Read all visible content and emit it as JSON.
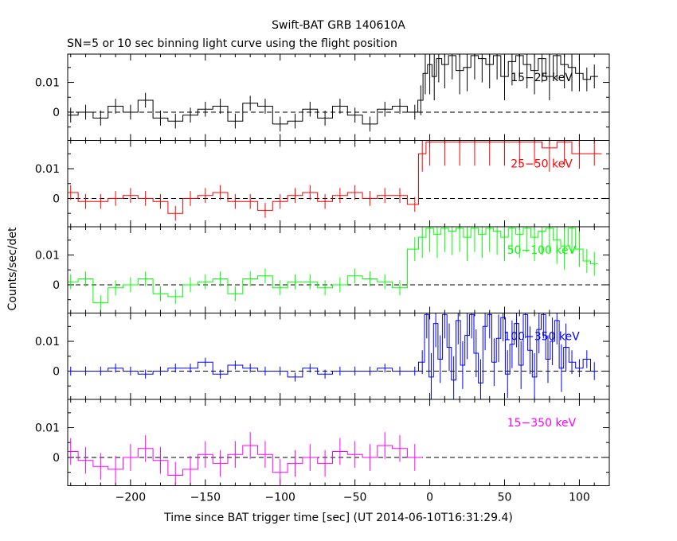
{
  "title": "Swift-BAT GRB 140610A",
  "subtitle": "SN=5 or 10 sec binning light curve using the flight position",
  "chart_data": {
    "type": "line",
    "title": "Swift-BAT GRB 140610A",
    "subtitle": "SN=5 or 10 sec binning light curve using the flight position",
    "xlabel": "Time since BAT trigger time [sec] (UT 2014-06-10T16:31:29.4)",
    "ylabel": "Counts/sec/det",
    "xlim": [
      -242,
      120
    ],
    "ylim": [
      -0.0095,
      0.0195
    ],
    "x_ticks": [
      -200,
      -150,
      -100,
      -50,
      0,
      50,
      100
    ],
    "x_tick_labels": [
      "−200",
      "−150",
      "−100",
      "−50",
      "0",
      "50",
      "100"
    ],
    "y_ticks": [
      0,
      0.01
    ],
    "y_tick_labels": [
      "0",
      "0.01"
    ],
    "zero_line": "dashed",
    "grid": false,
    "panels": [
      {
        "name": "15−25 keV",
        "color": "#000000",
        "x": [
          -240,
          -230,
          -220,
          -210,
          -200,
          -190,
          -180,
          -170,
          -160,
          -150,
          -140,
          -130,
          -120,
          -110,
          -100,
          -90,
          -80,
          -70,
          -60,
          -50,
          -40,
          -30,
          -20,
          -10,
          -6,
          -3,
          0,
          3,
          6,
          10,
          15,
          20,
          25,
          30,
          35,
          40,
          45,
          50,
          55,
          60,
          65,
          70,
          75,
          80,
          85,
          90,
          95,
          100,
          105,
          110
        ],
        "y": [
          -0.001,
          0.0,
          -0.002,
          0.002,
          0.0,
          0.004,
          -0.002,
          -0.003,
          -0.001,
          0.001,
          0.002,
          -0.003,
          0.003,
          0.002,
          -0.004,
          -0.003,
          0.001,
          -0.002,
          0.002,
          -0.001,
          -0.004,
          0.001,
          0.002,
          0.0,
          0.004,
          0.013,
          0.016,
          0.012,
          0.018,
          0.016,
          0.019,
          0.014,
          0.015,
          0.019,
          0.018,
          0.016,
          0.019,
          0.012,
          0.017,
          0.019,
          0.016,
          0.014,
          0.018,
          0.012,
          0.019,
          0.016,
          0.015,
          0.013,
          0.011,
          0.012
        ],
        "err": [
          0.0025,
          0.0025,
          0.0025,
          0.0025,
          0.0025,
          0.0025,
          0.0025,
          0.0025,
          0.0025,
          0.0025,
          0.0025,
          0.0025,
          0.0025,
          0.0025,
          0.0025,
          0.0025,
          0.0025,
          0.0025,
          0.0025,
          0.0025,
          0.0025,
          0.0025,
          0.0025,
          0.0025,
          0.005,
          0.007,
          0.01,
          0.008,
          0.008,
          0.008,
          0.008,
          0.008,
          0.008,
          0.008,
          0.008,
          0.008,
          0.008,
          0.008,
          0.008,
          0.008,
          0.008,
          0.008,
          0.008,
          0.008,
          0.008,
          0.008,
          0.008,
          0.006,
          0.004,
          0.004
        ]
      },
      {
        "name": "25−50 keV",
        "color": "#ff0000",
        "x": [
          -240,
          -230,
          -220,
          -210,
          -200,
          -190,
          -180,
          -170,
          -160,
          -150,
          -140,
          -130,
          -120,
          -110,
          -100,
          -90,
          -80,
          -70,
          -60,
          -50,
          -40,
          -30,
          -20,
          -10,
          -5,
          0,
          10,
          20,
          30,
          40,
          50,
          60,
          70,
          80,
          90,
          100,
          110
        ],
        "y": [
          0.002,
          -0.001,
          -0.001,
          0.0,
          0.001,
          0.0,
          -0.001,
          -0.005,
          0.0,
          0.001,
          0.002,
          -0.001,
          -0.001,
          -0.004,
          -0.001,
          0.001,
          0.002,
          -0.001,
          0.001,
          0.002,
          0.0,
          0.001,
          0.001,
          -0.002,
          0.015,
          0.019,
          0.019,
          0.019,
          0.019,
          0.019,
          0.019,
          0.019,
          0.019,
          0.017,
          0.019,
          0.015,
          0.015
        ],
        "err": [
          0.0025,
          0.0025,
          0.0025,
          0.0025,
          0.0025,
          0.0025,
          0.0025,
          0.0025,
          0.0025,
          0.0025,
          0.0025,
          0.0025,
          0.0025,
          0.0025,
          0.0025,
          0.0025,
          0.0025,
          0.0025,
          0.0025,
          0.0025,
          0.0025,
          0.0025,
          0.0025,
          0.0025,
          0.006,
          0.008,
          0.008,
          0.008,
          0.008,
          0.008,
          0.008,
          0.008,
          0.008,
          0.008,
          0.008,
          0.005,
          0.004
        ]
      },
      {
        "name": "50−100 keV",
        "color": "#00ff00",
        "x": [
          -240,
          -230,
          -220,
          -210,
          -200,
          -190,
          -180,
          -170,
          -160,
          -150,
          -140,
          -130,
          -120,
          -110,
          -100,
          -90,
          -80,
          -70,
          -60,
          -50,
          -40,
          -30,
          -20,
          -10,
          -5,
          0,
          5,
          10,
          15,
          20,
          25,
          30,
          35,
          40,
          45,
          50,
          55,
          60,
          65,
          70,
          75,
          80,
          85,
          90,
          95,
          100,
          105,
          110
        ],
        "y": [
          0.001,
          0.002,
          -0.006,
          -0.001,
          0.0,
          0.002,
          -0.003,
          -0.004,
          0.0,
          0.001,
          0.002,
          -0.003,
          0.002,
          0.003,
          -0.001,
          0.001,
          0.001,
          -0.001,
          0.0,
          0.003,
          0.002,
          0.001,
          -0.001,
          0.012,
          0.016,
          0.019,
          0.017,
          0.019,
          0.018,
          0.019,
          0.016,
          0.019,
          0.017,
          0.019,
          0.018,
          0.016,
          0.019,
          0.017,
          0.019,
          0.016,
          0.018,
          0.019,
          0.015,
          0.013,
          0.019,
          0.012,
          0.008,
          0.007
        ],
        "err": [
          0.0025,
          0.0025,
          0.0025,
          0.0025,
          0.0025,
          0.0025,
          0.0025,
          0.0025,
          0.0025,
          0.0025,
          0.0025,
          0.0025,
          0.0025,
          0.0025,
          0.0025,
          0.0025,
          0.0025,
          0.0025,
          0.0025,
          0.0025,
          0.0025,
          0.0025,
          0.0025,
          0.004,
          0.007,
          0.008,
          0.008,
          0.008,
          0.008,
          0.008,
          0.008,
          0.008,
          0.008,
          0.008,
          0.008,
          0.008,
          0.008,
          0.008,
          0.008,
          0.008,
          0.008,
          0.008,
          0.008,
          0.008,
          0.008,
          0.006,
          0.004,
          0.004
        ]
      },
      {
        "name": "100−350 keV",
        "color": "#0000ff",
        "x": [
          -240,
          -230,
          -220,
          -210,
          -200,
          -190,
          -180,
          -170,
          -160,
          -150,
          -140,
          -130,
          -120,
          -110,
          -100,
          -90,
          -80,
          -70,
          -60,
          -50,
          -40,
          -30,
          -20,
          -10,
          -5,
          -2,
          1,
          4,
          7,
          10,
          13,
          16,
          19,
          22,
          25,
          28,
          31,
          34,
          37,
          40,
          43,
          46,
          49,
          52,
          55,
          58,
          61,
          64,
          67,
          70,
          73,
          76,
          79,
          82,
          85,
          88,
          91,
          95,
          100,
          105,
          110
        ],
        "y": [
          0.0,
          0.0,
          0.0,
          0.001,
          0.0,
          -0.001,
          0.0,
          0.001,
          0.001,
          0.003,
          -0.001,
          0.002,
          0.001,
          0.0,
          0.0,
          -0.002,
          0.001,
          -0.001,
          0.0,
          0.0,
          0.0,
          0.001,
          0.0,
          0.0,
          0.003,
          0.019,
          -0.002,
          0.016,
          0.004,
          0.019,
          0.008,
          -0.003,
          0.017,
          0.002,
          0.012,
          0.019,
          0.006,
          -0.004,
          0.015,
          0.019,
          0.003,
          0.011,
          0.018,
          -0.001,
          0.009,
          0.016,
          0.002,
          0.019,
          0.007,
          -0.002,
          0.014,
          0.019,
          0.004,
          0.01,
          0.017,
          0.001,
          0.008,
          0.003,
          0.001,
          0.004,
          0.0
        ],
        "err": [
          0.0015,
          0.0015,
          0.0015,
          0.0015,
          0.0015,
          0.0015,
          0.0015,
          0.0015,
          0.0015,
          0.0015,
          0.0015,
          0.0015,
          0.0015,
          0.0015,
          0.0015,
          0.0015,
          0.0015,
          0.0015,
          0.0015,
          0.0015,
          0.0015,
          0.0015,
          0.0015,
          0.0015,
          0.004,
          0.008,
          0.008,
          0.008,
          0.008,
          0.008,
          0.008,
          0.008,
          0.008,
          0.008,
          0.008,
          0.008,
          0.008,
          0.008,
          0.008,
          0.008,
          0.008,
          0.008,
          0.008,
          0.008,
          0.008,
          0.008,
          0.008,
          0.008,
          0.008,
          0.008,
          0.008,
          0.008,
          0.008,
          0.008,
          0.008,
          0.008,
          0.008,
          0.004,
          0.003,
          0.003,
          0.003
        ]
      },
      {
        "name": "15−350 keV",
        "color": "#ff00ff",
        "x": [
          -240,
          -230,
          -220,
          -210,
          -200,
          -190,
          -180,
          -170,
          -160,
          -150,
          -140,
          -130,
          -120,
          -110,
          -100,
          -90,
          -80,
          -70,
          -60,
          -50,
          -40,
          -30,
          -20,
          -10
        ],
        "y": [
          0.002,
          -0.001,
          -0.003,
          -0.004,
          0.0,
          0.003,
          -0.001,
          -0.006,
          -0.004,
          0.001,
          -0.002,
          0.001,
          0.004,
          0.001,
          -0.005,
          -0.002,
          0.0,
          -0.002,
          0.002,
          0.001,
          0.0,
          0.004,
          0.003,
          0.0
        ],
        "err": [
          0.0045,
          0.0045,
          0.0045,
          0.0045,
          0.0045,
          0.0045,
          0.0045,
          0.0045,
          0.0045,
          0.0045,
          0.0045,
          0.0045,
          0.0045,
          0.0045,
          0.0045,
          0.0045,
          0.0045,
          0.0045,
          0.0045,
          0.0045,
          0.0045,
          0.0045,
          0.0045,
          0.0045
        ]
      }
    ]
  }
}
